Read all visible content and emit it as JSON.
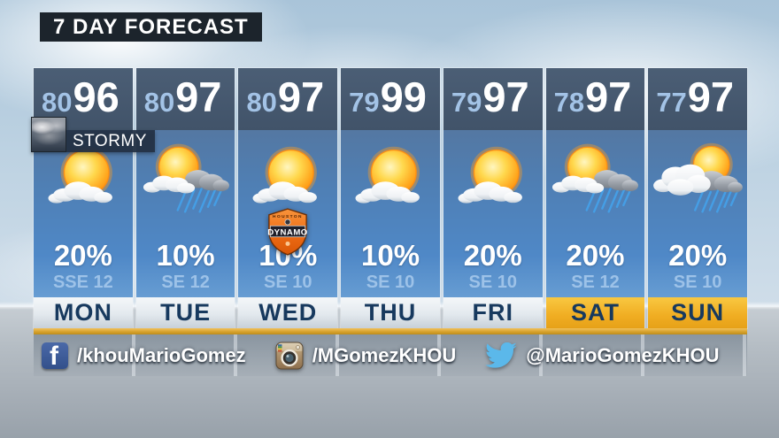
{
  "header": {
    "title": "7 DAY FORECAST"
  },
  "panel": {
    "stormy_badge": {
      "label": "STORMY"
    },
    "days": [
      {
        "label": "MON",
        "low": "80",
        "high": "96",
        "pop": "20%",
        "wind": "SSE 12",
        "icon": "sun-with-cloud",
        "weekend": false
      },
      {
        "label": "TUE",
        "low": "80",
        "high": "97",
        "pop": "10%",
        "wind": "SE 12",
        "icon": "sun-storm",
        "weekend": false
      },
      {
        "label": "WED",
        "low": "80",
        "high": "97",
        "pop": "10%",
        "wind": "SE 10",
        "icon": "sun-with-cloud",
        "weekend": false,
        "logo": "dynamo"
      },
      {
        "label": "THU",
        "low": "79",
        "high": "99",
        "pop": "10%",
        "wind": "SE 10",
        "icon": "sun-with-cloud",
        "weekend": false
      },
      {
        "label": "FRI",
        "low": "79",
        "high": "97",
        "pop": "20%",
        "wind": "SE 10",
        "icon": "sun-with-cloud",
        "weekend": false
      },
      {
        "label": "SAT",
        "low": "78",
        "high": "97",
        "pop": "20%",
        "wind": "SE 12",
        "icon": "sun-storm",
        "weekend": true
      },
      {
        "label": "SUN",
        "low": "77",
        "high": "97",
        "pop": "20%",
        "wind": "SE 10",
        "icon": "cloud-sun-storm",
        "weekend": true
      }
    ],
    "dynamo_logo": {
      "city": "HOUSTON",
      "team": "DYNAMO"
    }
  },
  "social": {
    "items": [
      {
        "network": "facebook",
        "handle": "/khouMarioGomez"
      },
      {
        "network": "instagram",
        "handle": "/MGomezKHOU"
      },
      {
        "network": "twitter",
        "handle": "@MarioGomezKHOU"
      }
    ]
  },
  "colors": {
    "accent_gold": "#f0ad22",
    "column_header_navy": "#44576d",
    "column_body_blue": "#4f86c4",
    "day_text_navy": "#17395e",
    "low_temp_blue": "#a3c3e6",
    "wind_text_blue": "#9dc2e8",
    "facebook_blue": "#3b5998",
    "twitter_blue": "#5bb8ea",
    "dynamo_orange": "#f26f21"
  }
}
